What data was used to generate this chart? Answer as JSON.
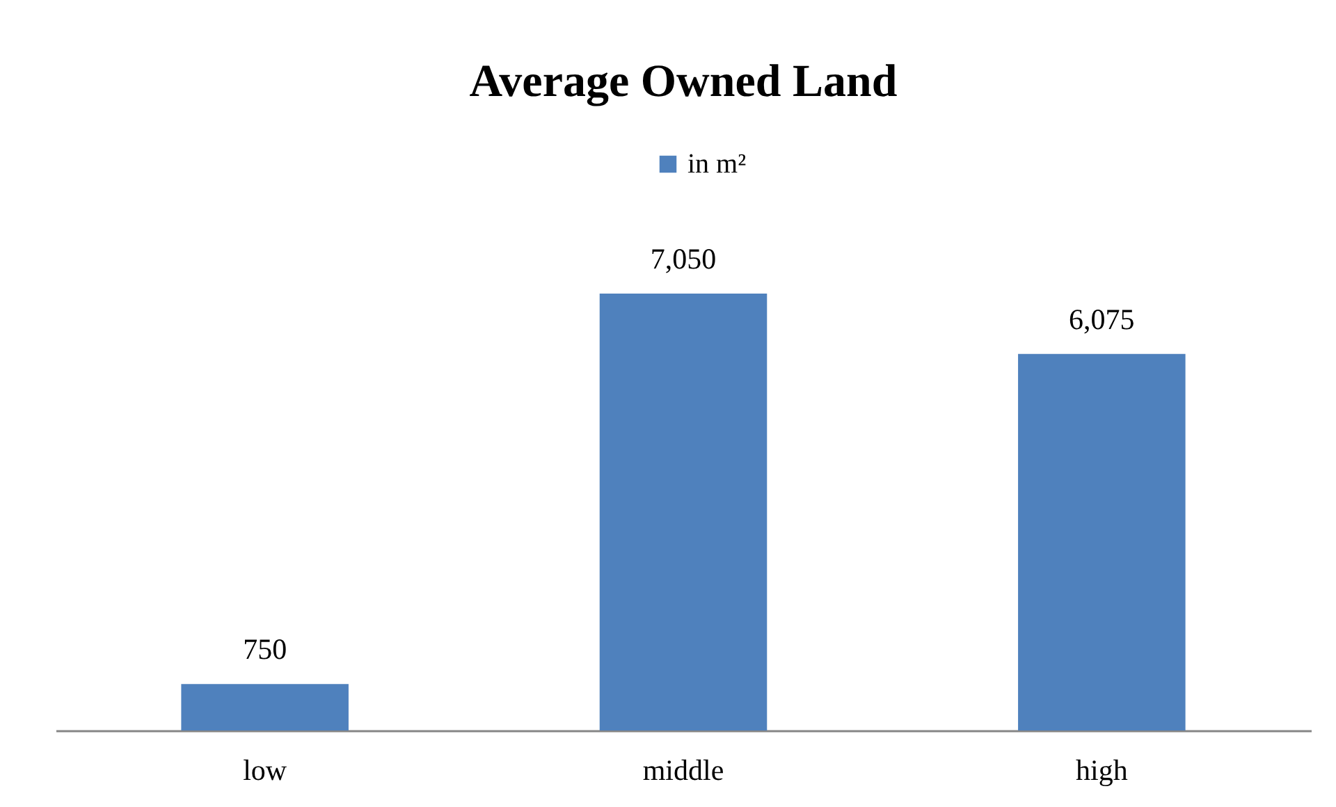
{
  "chart_data": {
    "type": "bar",
    "title": "Average Owned Land",
    "categories": [
      "low",
      "middle",
      "high"
    ],
    "series": [
      {
        "name": "in m²",
        "color": "#4f81bd",
        "values": [
          750,
          7050,
          6075
        ],
        "value_labels": [
          "750",
          "7,050",
          "6,075"
        ]
      }
    ],
    "legend": "top"
  }
}
